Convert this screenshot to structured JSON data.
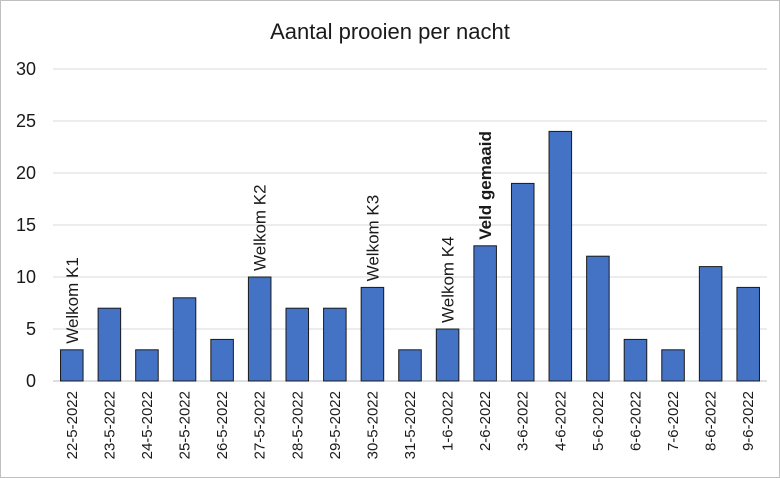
{
  "chart_data": {
    "type": "bar",
    "title": "Aantal prooien per nacht",
    "xlabel": "",
    "ylabel": "",
    "ylim": [
      0,
      30
    ],
    "yticks": [
      0,
      5,
      10,
      15,
      20,
      25,
      30
    ],
    "grid": true,
    "legend": "none",
    "bar_color": "#4472C4",
    "categories": [
      "22-5-2022",
      "23-5-2022",
      "24-5-2022",
      "25-5-2022",
      "26-5-2022",
      "27-5-2022",
      "28-5-2022",
      "29-5-2022",
      "30-5-2022",
      "31-5-2022",
      "1-6-2022",
      "2-6-2022",
      "3-6-2022",
      "4-6-2022",
      "5-6-2022",
      "6-6-2022",
      "7-6-2022",
      "8-6-2022",
      "9-6-2022"
    ],
    "values": [
      3,
      7,
      3,
      8,
      4,
      10,
      7,
      7,
      9,
      3,
      5,
      13,
      19,
      24,
      12,
      4,
      3,
      11,
      9
    ],
    "annotations": [
      {
        "category": "22-5-2022",
        "text": "Welkom K1",
        "bold": false
      },
      {
        "category": "27-5-2022",
        "text": "Welkom K2",
        "bold": false
      },
      {
        "category": "30-5-2022",
        "text": "Welkom K3",
        "bold": false
      },
      {
        "category": "1-6-2022",
        "text": "Welkom K4",
        "bold": false
      },
      {
        "category": "2-6-2022",
        "text": "Veld gemaaid",
        "bold": true
      }
    ]
  }
}
